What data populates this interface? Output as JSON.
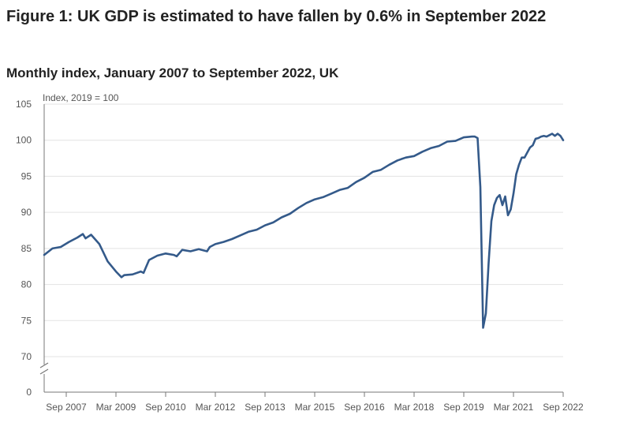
{
  "title": "Figure 1: UK GDP is estimated to have fallen by 0.6% in September 2022",
  "subtitle": "Monthly index, January 2007 to September 2022, UK",
  "chart_data": {
    "type": "line",
    "ylabel": "Index, 2019 = 100",
    "xlabel": "",
    "ylim": [
      68,
      105
    ],
    "y_axis_break": true,
    "y_ticks": [
      105,
      100,
      95,
      90,
      85,
      80,
      75,
      70,
      0
    ],
    "x_ticks": [
      "Sep 2007",
      "Mar 2009",
      "Sep 2010",
      "Mar 2012",
      "Sep 2013",
      "Mar 2015",
      "Sep 2016",
      "Mar 2018",
      "Sep 2019",
      "Mar 2021",
      "Sep 2022"
    ],
    "grid": true,
    "legend": "none",
    "line_color": "#345a8a",
    "series": [
      {
        "x": [
          "2007-01",
          "2007-04",
          "2007-07",
          "2007-10",
          "2008-01",
          "2008-03",
          "2008-04",
          "2008-06",
          "2008-09",
          "2008-12",
          "2009-03",
          "2009-05",
          "2009-06",
          "2009-09",
          "2009-12",
          "2010-01",
          "2010-03",
          "2010-06",
          "2010-09",
          "2010-12",
          "2011-01",
          "2011-03",
          "2011-06",
          "2011-09",
          "2011-12",
          "2012-01",
          "2012-03",
          "2012-06",
          "2012-09",
          "2012-12",
          "2013-03",
          "2013-06",
          "2013-09",
          "2013-12",
          "2014-03",
          "2014-06",
          "2014-09",
          "2014-12",
          "2015-03",
          "2015-06",
          "2015-09",
          "2015-12",
          "2016-03",
          "2016-06",
          "2016-09",
          "2016-12",
          "2017-03",
          "2017-06",
          "2017-09",
          "2017-12",
          "2018-03",
          "2018-06",
          "2018-09",
          "2018-12",
          "2019-03",
          "2019-06",
          "2019-09",
          "2019-12",
          "2020-01",
          "2020-02",
          "2020-03",
          "2020-04",
          "2020-05",
          "2020-06",
          "2020-07",
          "2020-08",
          "2020-09",
          "2020-10",
          "2020-11",
          "2020-12",
          "2021-01",
          "2021-02",
          "2021-03",
          "2021-04",
          "2021-05",
          "2021-06",
          "2021-07",
          "2021-08",
          "2021-09",
          "2021-10",
          "2021-11",
          "2021-12",
          "2022-01",
          "2022-02",
          "2022-03",
          "2022-04",
          "2022-05",
          "2022-06",
          "2022-07",
          "2022-08",
          "2022-09"
        ],
        "values": [
          84.1,
          85.0,
          85.2,
          85.9,
          86.5,
          87.0,
          86.4,
          86.9,
          85.6,
          83.2,
          81.8,
          81.0,
          81.3,
          81.4,
          81.8,
          81.6,
          83.4,
          84.0,
          84.3,
          84.1,
          83.9,
          84.8,
          84.6,
          84.9,
          84.6,
          85.2,
          85.6,
          85.9,
          86.3,
          86.8,
          87.3,
          87.6,
          88.2,
          88.6,
          89.3,
          89.8,
          90.6,
          91.3,
          91.8,
          92.1,
          92.6,
          93.1,
          93.4,
          94.2,
          94.8,
          95.6,
          95.9,
          96.6,
          97.2,
          97.6,
          97.8,
          98.4,
          98.9,
          99.2,
          99.8,
          99.9,
          100.4,
          100.5,
          100.5,
          100.3,
          93.5,
          74.0,
          76.0,
          83.0,
          88.8,
          91.0,
          92.0,
          92.4,
          91.0,
          92.2,
          89.6,
          90.4,
          92.6,
          95.3,
          96.6,
          97.6,
          97.6,
          98.3,
          99.0,
          99.3,
          100.2,
          100.3,
          100.5,
          100.6,
          100.5,
          100.7,
          100.9,
          100.6,
          100.9,
          100.6,
          100.0
        ]
      }
    ]
  }
}
